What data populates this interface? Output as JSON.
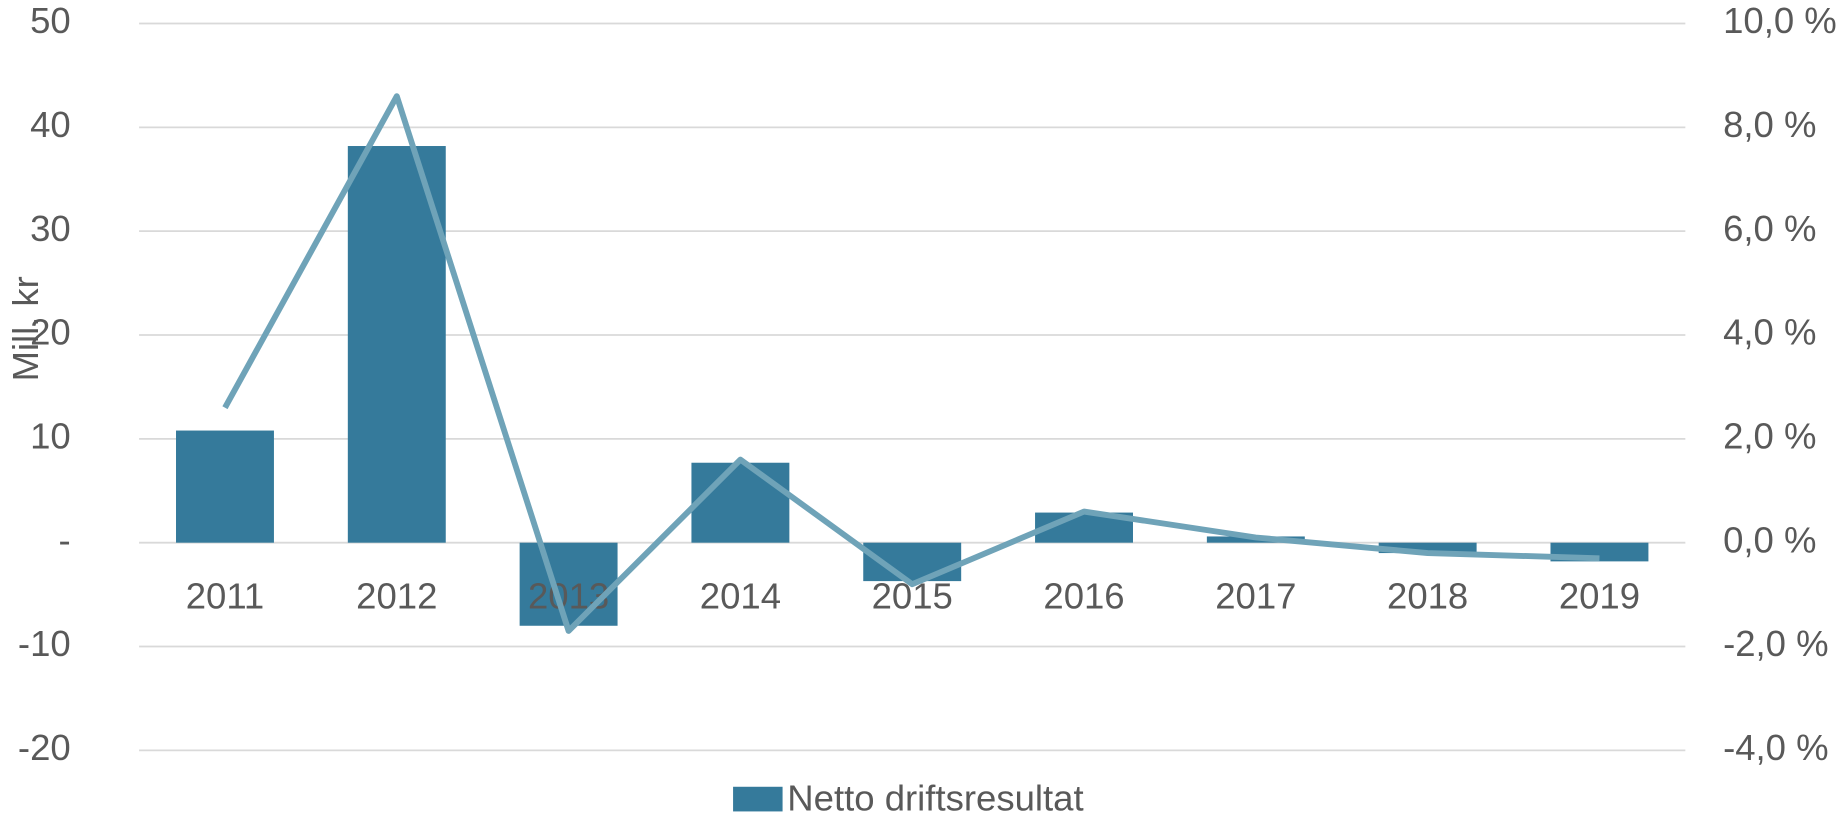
{
  "chart_data": {
    "type": "bar",
    "y_label": "Mill. kr",
    "categories": [
      "2011",
      "2012",
      "2013",
      "2014",
      "2015",
      "2016",
      "2017",
      "2018",
      "2019"
    ],
    "series": [
      {
        "name": "Netto driftsresultat",
        "type": "bar",
        "color": "#357a9b",
        "values": [
          10.8,
          38.2,
          -8.0,
          7.7,
          -3.7,
          2.9,
          0.6,
          -1.0,
          -1.8
        ]
      },
      {
        "type": "line",
        "axis": "y2",
        "color": "#6fa3b8",
        "values": [
          2.6,
          8.6,
          -1.7,
          1.6,
          -0.8,
          0.6,
          0.1,
          -0.2,
          -0.3
        ]
      }
    ],
    "ylim": [
      -20,
      50
    ],
    "yticks": [
      -20,
      -10,
      {
        "value": 0,
        "label": "-"
      },
      10,
      20,
      30,
      40,
      50
    ],
    "y2lim": [
      -4,
      10
    ],
    "y2ticks": [
      {
        "value": -4,
        "label": "-4,0 %"
      },
      {
        "value": -2,
        "label": "-2,0 %"
      },
      {
        "value": 0,
        "label": "0,0 %"
      },
      {
        "value": 2,
        "label": "2,0 %"
      },
      {
        "value": 4,
        "label": "4,0 %"
      },
      {
        "value": 6,
        "label": "6,0 %"
      },
      {
        "value": 8,
        "label": "8,0 %"
      },
      {
        "value": 10,
        "label": "10,0 %"
      }
    ],
    "grid": true,
    "legend": "bottom"
  }
}
